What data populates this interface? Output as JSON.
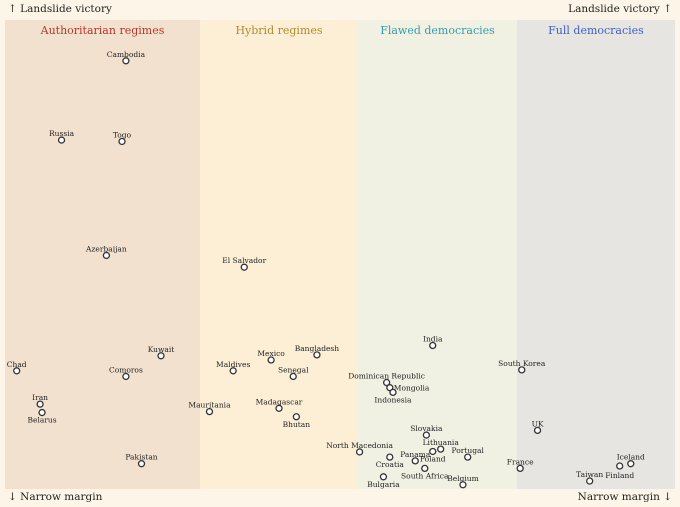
{
  "corner_labels": {
    "top_left": "↑ Landslide victory",
    "top_right": "Landslide victory ↑",
    "bottom_left": "↓ Narrow margin",
    "bottom_right": "Narrow margin ↓"
  },
  "chart_data": {
    "type": "scatter",
    "title": "",
    "xlabel": "",
    "ylabel": "",
    "regimes": [
      {
        "name": "Authoritarian regimes",
        "color": "#b03a2e",
        "bg": "#f3e1cf"
      },
      {
        "name": "Hybrid regimes",
        "color": "#b08a30",
        "bg": "#fcefd6"
      },
      {
        "name": "Flawed democracies",
        "color": "#3a9aa8",
        "bg": "#f1f1e3"
      },
      {
        "name": "Full democracies",
        "color": "#3f5fbf",
        "bg": "#e7e5e1"
      }
    ],
    "points": [
      {
        "label": "Cambodia",
        "x": 0.62,
        "y": 0.913
      },
      {
        "label": "Russia",
        "x": 0.29,
        "y": 0.744
      },
      {
        "label": "Togo",
        "x": 0.6,
        "y": 0.741
      },
      {
        "label": "Azerbaijan",
        "x": 0.52,
        "y": 0.498
      },
      {
        "label": "Kuwait",
        "x": 0.8,
        "y": 0.284
      },
      {
        "label": "Chad",
        "x": 0.06,
        "y": 0.252
      },
      {
        "label": "Comoros",
        "x": 0.62,
        "y": 0.24
      },
      {
        "label": "Iran",
        "x": 0.18,
        "y": 0.181
      },
      {
        "label": "Belarus",
        "x": 0.19,
        "y": 0.163
      },
      {
        "label": "Pakistan",
        "x": 0.7,
        "y": 0.054
      },
      {
        "label": "El Salvador",
        "x": 1.28,
        "y": 0.473
      },
      {
        "label": "Mexico",
        "x": 1.45,
        "y": 0.275
      },
      {
        "label": "Bangladesh",
        "x": 1.74,
        "y": 0.286
      },
      {
        "label": "Maldives",
        "x": 1.21,
        "y": 0.252
      },
      {
        "label": "Senegal",
        "x": 1.59,
        "y": 0.24
      },
      {
        "label": "Mauritania",
        "x": 1.06,
        "y": 0.165
      },
      {
        "label": "Madagascar",
        "x": 1.5,
        "y": 0.172
      },
      {
        "label": "Bhutan",
        "x": 1.61,
        "y": 0.154
      },
      {
        "label": "India",
        "x": 2.47,
        "y": 0.306
      },
      {
        "label": "Dominican Republic",
        "x": 2.18,
        "y": 0.227
      },
      {
        "label": "Mongolia",
        "x": 2.2,
        "y": 0.216
      },
      {
        "label": "Indonesia",
        "x": 2.22,
        "y": 0.206
      },
      {
        "label": "Slovakia",
        "x": 2.43,
        "y": 0.115
      },
      {
        "label": "Lithuania",
        "x": 2.52,
        "y": 0.085
      },
      {
        "label": "North Macedonia",
        "x": 2.01,
        "y": 0.079
      },
      {
        "label": "Panama",
        "x": 2.36,
        "y": 0.06
      },
      {
        "label": "Poland",
        "x": 2.47,
        "y": 0.08
      },
      {
        "label": "Croatia",
        "x": 2.2,
        "y": 0.068
      },
      {
        "label": "Portugal",
        "x": 2.69,
        "y": 0.068
      },
      {
        "label": "South Africa",
        "x": 2.42,
        "y": 0.044
      },
      {
        "label": "Bulgaria",
        "x": 2.16,
        "y": 0.026
      },
      {
        "label": "Belgium",
        "x": 2.66,
        "y": 0.009
      },
      {
        "label": "South Korea",
        "x": 3.03,
        "y": 0.254
      },
      {
        "label": "UK",
        "x": 3.13,
        "y": 0.125
      },
      {
        "label": "France",
        "x": 3.02,
        "y": 0.044
      },
      {
        "label": "Iceland",
        "x": 3.72,
        "y": 0.054
      },
      {
        "label": "Finland",
        "x": 3.65,
        "y": 0.049
      },
      {
        "label": "Taiwan",
        "x": 3.46,
        "y": 0.017
      }
    ]
  }
}
